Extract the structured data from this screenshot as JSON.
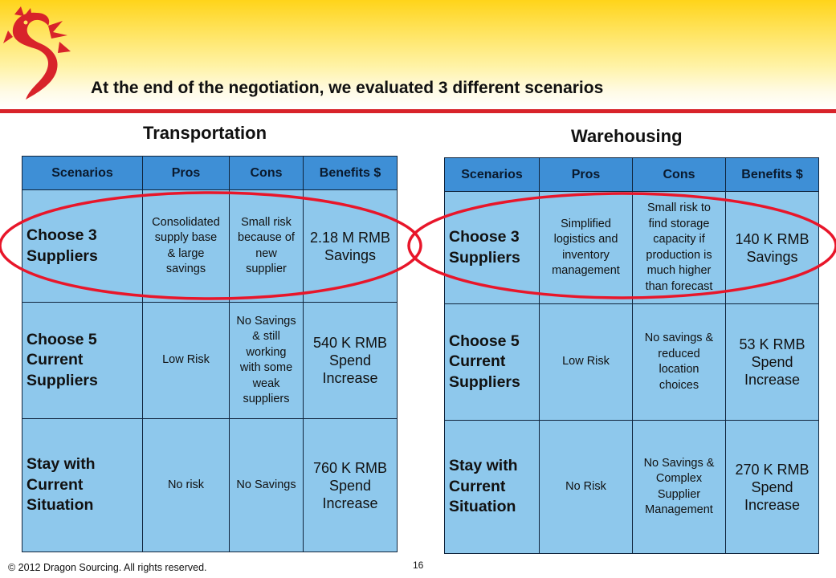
{
  "slide": {
    "title": "At the end of the negotiation, we evaluated 3 different scenarios",
    "footer": "© 2012 Dragon Sourcing. All rights reserved.",
    "page_number": "16",
    "logo_icon": "dragon-logo-icon",
    "accent_color": "#d8232a",
    "header_fill_color": "#3e8fd6",
    "cell_fill_color": "#8ec8ec",
    "highlight_color": "#e8162a"
  },
  "transportation": {
    "title": "Transportation",
    "headers": [
      "Scenarios",
      "Pros",
      "Cons",
      "Benefits $"
    ],
    "rows": [
      {
        "scenario": [
          "Choose 3",
          "Suppliers"
        ],
        "pros": [
          "Consolidated",
          "supply base",
          "& large",
          "savings"
        ],
        "cons": [
          "Small risk",
          "because of",
          "new",
          "supplier"
        ],
        "benefit_value": "2.18 M RMB",
        "benefit_label": "Savings",
        "benefit_type": "savings"
      },
      {
        "scenario": [
          "Choose 5",
          "Current",
          "Suppliers"
        ],
        "pros": [
          "Low Risk"
        ],
        "cons": [
          "No Savings",
          "& still",
          "working",
          "with some",
          "weak",
          "suppliers"
        ],
        "benefit_value": "540 K RMB",
        "benefit_label": "Spend Increase",
        "benefit_type": "increase"
      },
      {
        "scenario": [
          "Stay with",
          "Current",
          "Situation"
        ],
        "pros": [
          "No risk"
        ],
        "cons": [
          "No Savings"
        ],
        "benefit_value": "760 K RMB",
        "benefit_label": "Spend Increase",
        "benefit_type": "increase"
      }
    ]
  },
  "warehousing": {
    "title": "Warehousing",
    "headers": [
      "Scenarios",
      "Pros",
      "Cons",
      "Benefits $"
    ],
    "rows": [
      {
        "scenario": [
          "Choose 3",
          "Suppliers"
        ],
        "pros": [
          "Simplified",
          "logistics and",
          "inventory",
          "management"
        ],
        "cons": [
          "Small risk to",
          "find storage",
          "capacity if",
          "production is",
          "much higher",
          "than forecast"
        ],
        "benefit_value": "140 K RMB",
        "benefit_label": "Savings",
        "benefit_type": "savings"
      },
      {
        "scenario": [
          "Choose 5",
          "Current",
          "Suppliers"
        ],
        "pros": [
          "Low Risk"
        ],
        "cons": [
          "No savings &",
          "reduced",
          "location",
          "choices"
        ],
        "benefit_value": "53 K RMB",
        "benefit_label": "Spend Increase",
        "benefit_type": "increase"
      },
      {
        "scenario": [
          "Stay with",
          "Current",
          "Situation"
        ],
        "pros": [
          "No Risk"
        ],
        "cons": [
          "No Savings &",
          "Complex",
          "Supplier",
          "Management"
        ],
        "benefit_value": "270 K RMB",
        "benefit_label": "Spend Increase",
        "benefit_type": "increase"
      }
    ]
  }
}
